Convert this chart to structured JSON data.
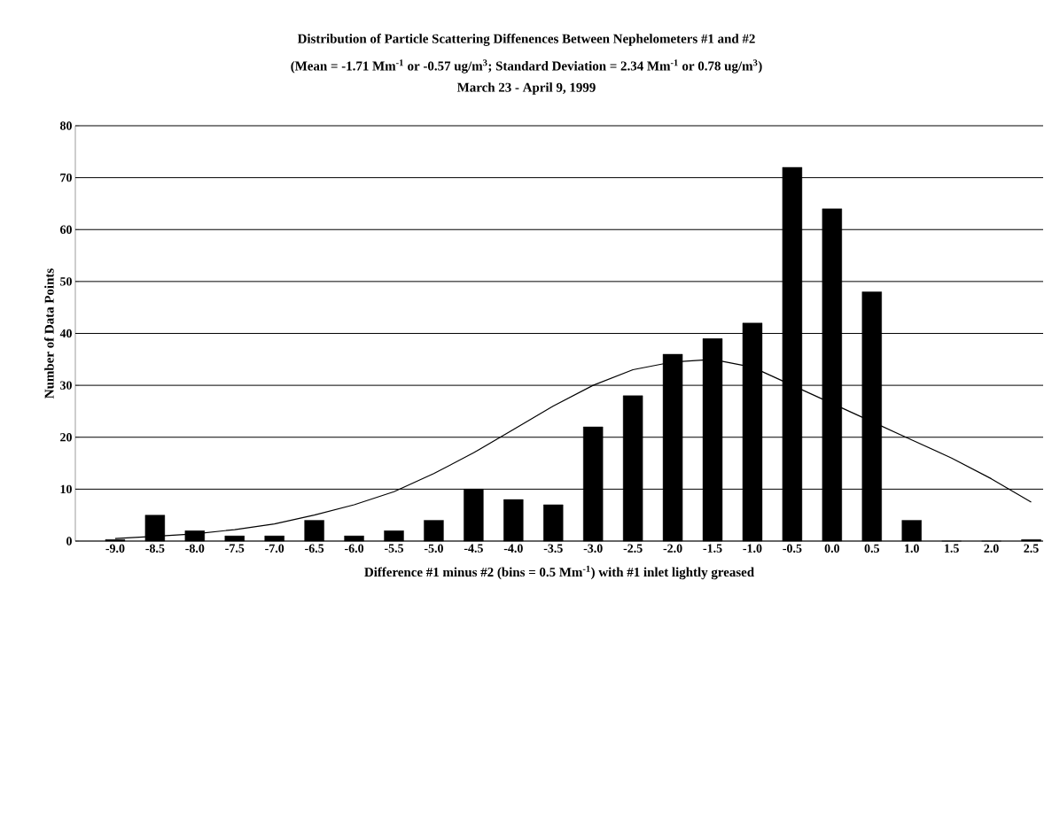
{
  "chart_data": {
    "type": "bar",
    "title": "Distribution of Particle Scattering Diffenences Between Nephelometers #1 and #2",
    "subtitle": "(Mean = -1.71 Mm$^{-1}$ or -0.57 ug/m$^{3}$; Standard Deviation = 2.34 Mm$^{-1}$ or 0.78 ug/m$^{3}$)",
    "annotations": [
      "March 23 - April 9, 1999"
    ],
    "xlabel": "Difference #1 minus #2 (bins = 0.5 Mm$^{-1}$) with #1 inlet lightly greased",
    "ylabel": "Number of Data Points",
    "categories": [
      "-9.0",
      "-8.5",
      "-8.0",
      "-7.5",
      "-7.0",
      "-6.5",
      "-6.0",
      "-5.5",
      "-5.0",
      "-4.5",
      "-4.0",
      "-3.5",
      "-3.0",
      "-2.5",
      "-2.0",
      "-1.5",
      "-1.0",
      "-0.5",
      "0.0",
      "0.5",
      "1.0",
      "1.5",
      "2.0",
      "2.5"
    ],
    "series": [
      {
        "color": "#000000",
        "values": [
          0.3,
          5,
          2,
          1,
          1,
          4,
          1,
          2,
          4,
          10,
          8,
          7,
          22,
          28,
          36,
          39,
          42,
          72,
          64,
          48,
          4,
          0,
          0,
          0.3
        ]
      },
      {
        "type": "line",
        "color": "#000000",
        "values": [
          0.5,
          0.9,
          1.4,
          2.2,
          3.3,
          5,
          7,
          9.5,
          13,
          17,
          21.5,
          26,
          30,
          33,
          34.5,
          35,
          33.5,
          30,
          26.5,
          23,
          19.5,
          16,
          12,
          7.5
        ]
      }
    ],
    "ylim": [
      0,
      80
    ],
    "yticks": [
      0,
      10,
      20,
      30,
      40,
      50,
      60,
      70,
      80
    ],
    "grid": "y"
  }
}
